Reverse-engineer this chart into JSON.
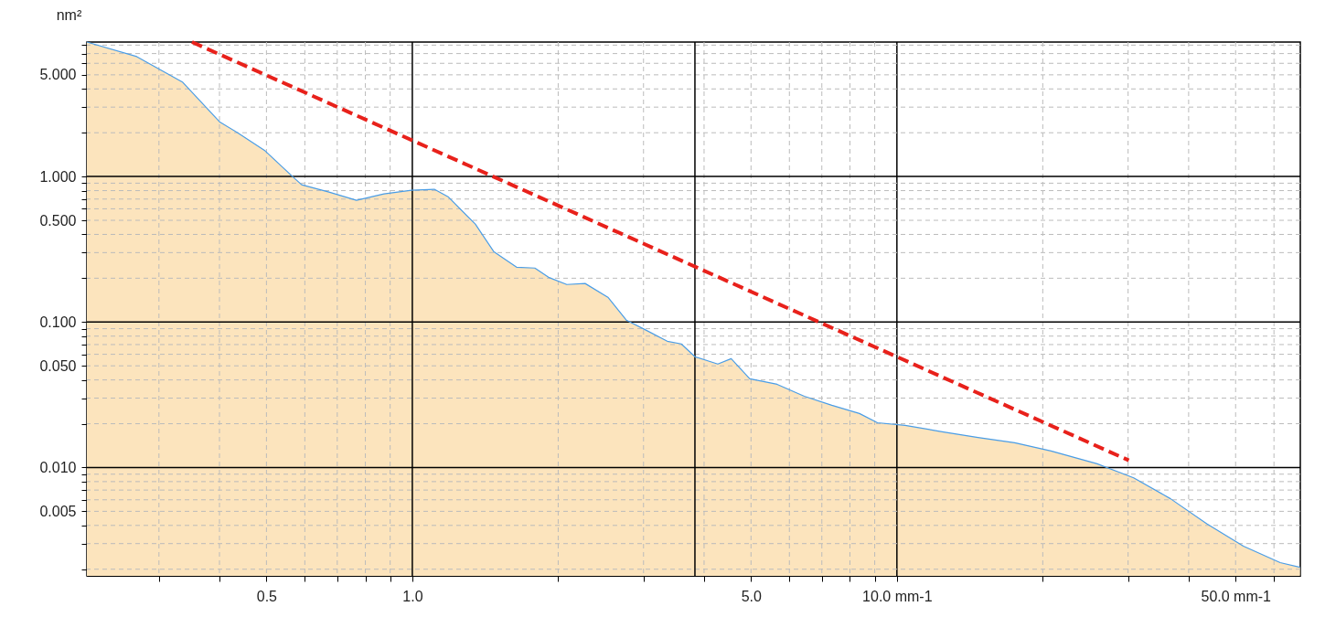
{
  "chart_data": {
    "type": "area",
    "ylabel": "nm²",
    "log": "xy",
    "grid": true,
    "xlim": [
      0.213,
      68
    ],
    "ylim": [
      0.0018,
      8.4
    ],
    "xticks": [
      {
        "value": 0.3,
        "label": null
      },
      {
        "value": 0.4,
        "label": null
      },
      0.5,
      {
        "value": 0.6,
        "label": null
      },
      {
        "value": 0.7,
        "label": null
      },
      {
        "value": 0.8,
        "label": null
      },
      {
        "value": 0.9,
        "label": null
      },
      {
        "value": 1,
        "label": "1.0"
      },
      {
        "value": 2,
        "label": null
      },
      {
        "value": 3,
        "label": null
      },
      {
        "value": 4,
        "label": null
      },
      {
        "value": 5,
        "label": "5.0"
      },
      {
        "value": 6,
        "label": null
      },
      {
        "value": 7,
        "label": null
      },
      {
        "value": 8,
        "label": null
      },
      {
        "value": 9,
        "label": null
      },
      {
        "value": 10,
        "label": "10.0 mm-1"
      },
      {
        "value": 20,
        "label": null
      },
      {
        "value": 30,
        "label": null
      },
      {
        "value": 40,
        "label": null
      },
      {
        "value": 50,
        "label": "50.0 mm-1"
      },
      {
        "value": 60,
        "label": null
      }
    ],
    "yticks": [
      {
        "value": 0.002,
        "label": null
      },
      {
        "value": 0.003,
        "label": null
      },
      {
        "value": 0.004,
        "label": null
      },
      {
        "value": 0.005,
        "label": "0.005"
      },
      {
        "value": 0.006,
        "label": null
      },
      {
        "value": 0.007,
        "label": null
      },
      {
        "value": 0.008,
        "label": null
      },
      {
        "value": 0.009,
        "label": null
      },
      {
        "value": 0.01,
        "label": "0.010"
      },
      {
        "value": 0.02,
        "label": null
      },
      {
        "value": 0.03,
        "label": null
      },
      {
        "value": 0.04,
        "label": null
      },
      {
        "value": 0.05,
        "label": "0.050"
      },
      {
        "value": 0.06,
        "label": null
      },
      {
        "value": 0.07,
        "label": null
      },
      {
        "value": 0.08,
        "label": null
      },
      {
        "value": 0.09,
        "label": null
      },
      {
        "value": 0.1,
        "label": "0.100"
      },
      {
        "value": 0.2,
        "label": null
      },
      {
        "value": 0.3,
        "label": null
      },
      {
        "value": 0.4,
        "label": null
      },
      {
        "value": 0.5,
        "label": "0.500"
      },
      {
        "value": 0.6,
        "label": null
      },
      {
        "value": 0.7,
        "label": null
      },
      {
        "value": 0.8,
        "label": null
      },
      {
        "value": 0.9,
        "label": null
      },
      {
        "value": 1,
        "label": "1.000"
      },
      {
        "value": 2,
        "label": null
      },
      {
        "value": 3,
        "label": null
      },
      {
        "value": 4,
        "label": null
      },
      {
        "value": 5,
        "label": "5.000"
      },
      {
        "value": 6,
        "label": null
      },
      {
        "value": 7,
        "label": null
      },
      {
        "value": 8,
        "label": null
      }
    ],
    "series": [
      {
        "color": "#fce4bd",
        "x": [
          0.213,
          0.27,
          0.336,
          0.4,
          0.436,
          0.497,
          0.566,
          0.591,
          0.673,
          0.767,
          0.874,
          0.996,
          1.11,
          1.185,
          1.349,
          1.472,
          1.641,
          1.79,
          1.91,
          2.083,
          2.273,
          2.533,
          2.764,
          3.015,
          3.358,
          3.59,
          3.83,
          4.27,
          4.55,
          4.97,
          5.66,
          6.44,
          7.34,
          8.37,
          9.12,
          10.4,
          12.4,
          14.7,
          17.5,
          20.8,
          25.9,
          30.8,
          36.7,
          43.6,
          51.9,
          61.8,
          67.9
        ],
        "values": [
          8.4,
          6.67,
          4.44,
          2.38,
          2.0,
          1.5,
          1.0,
          0.878,
          0.782,
          0.686,
          0.76,
          0.805,
          0.817,
          0.727,
          0.471,
          0.305,
          0.238,
          0.235,
          0.203,
          0.181,
          0.184,
          0.148,
          0.103,
          0.089,
          0.0738,
          0.0707,
          0.0577,
          0.0514,
          0.056,
          0.0407,
          0.0373,
          0.0309,
          0.0268,
          0.0235,
          0.0203,
          0.0195,
          0.0176,
          0.0161,
          0.0148,
          0.013,
          0.0106,
          0.0085,
          0.0061,
          0.0041,
          0.00288,
          0.00222,
          0.00206
        ]
      },
      {
        "type": "line",
        "color": "#4a9de6",
        "x": [
          0.213,
          0.27,
          0.336,
          0.4,
          0.436,
          0.497,
          0.566,
          0.591,
          0.673,
          0.767,
          0.874,
          0.996,
          1.11,
          1.185,
          1.349,
          1.472,
          1.641,
          1.79,
          1.91,
          2.083,
          2.273,
          2.533,
          2.764,
          3.015,
          3.358,
          3.59,
          3.83,
          4.27,
          4.55,
          4.97,
          5.66,
          6.44,
          7.34,
          8.37,
          9.12,
          10.4,
          12.4,
          14.7,
          17.5,
          20.8,
          25.9,
          30.8,
          36.7,
          43.6,
          51.9,
          61.8,
          67.9
        ],
        "values": [
          8.4,
          6.67,
          4.44,
          2.38,
          2.0,
          1.5,
          1.0,
          0.878,
          0.782,
          0.686,
          0.76,
          0.805,
          0.817,
          0.727,
          0.471,
          0.305,
          0.238,
          0.235,
          0.203,
          0.181,
          0.184,
          0.148,
          0.103,
          0.089,
          0.0738,
          0.0707,
          0.0577,
          0.0514,
          0.056,
          0.0407,
          0.0373,
          0.0309,
          0.0268,
          0.0235,
          0.0203,
          0.0195,
          0.0176,
          0.0161,
          0.0148,
          0.013,
          0.0106,
          0.0085,
          0.0061,
          0.0041,
          0.00288,
          0.00222,
          0.00206
        ]
      },
      {
        "type": "line",
        "color": "#e8211b",
        "line_style": "dashed",
        "x": [
          0.351,
          30.1
        ],
        "values": [
          8.4,
          0.0112
        ]
      }
    ],
    "ref_lines": [
      {
        "axis": "x",
        "value": 3.83,
        "color": "#000000"
      }
    ]
  }
}
